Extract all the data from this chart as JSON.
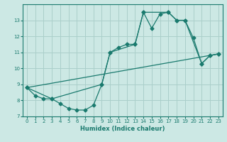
{
  "title": "",
  "xlabel": "Humidex (Indice chaleur)",
  "ylabel": "",
  "background_color": "#cce8e4",
  "grid_color": "#aacfca",
  "line_color": "#1a7a6e",
  "xlim": [
    -0.5,
    23.5
  ],
  "ylim": [
    7,
    14
  ],
  "yticks": [
    7,
    8,
    9,
    10,
    11,
    12,
    13
  ],
  "xticks": [
    0,
    1,
    2,
    3,
    4,
    5,
    6,
    7,
    8,
    9,
    10,
    11,
    12,
    13,
    14,
    15,
    16,
    17,
    18,
    19,
    20,
    21,
    22,
    23
  ],
  "series1_x": [
    0,
    1,
    2,
    3,
    4,
    5,
    6,
    7,
    8,
    9,
    10,
    11,
    12,
    13,
    14,
    15,
    16,
    17,
    18,
    19,
    20,
    21,
    22,
    23
  ],
  "series1_y": [
    8.8,
    8.3,
    8.1,
    8.1,
    7.8,
    7.5,
    7.4,
    7.4,
    7.7,
    9.0,
    11.0,
    11.3,
    11.5,
    11.5,
    13.5,
    12.5,
    13.4,
    13.5,
    13.0,
    13.0,
    11.9,
    10.3,
    10.8,
    10.9
  ],
  "series2_x": [
    0,
    3,
    9,
    10,
    13,
    14,
    17,
    18,
    19,
    21,
    22,
    23
  ],
  "series2_y": [
    8.8,
    8.1,
    9.0,
    11.0,
    11.5,
    13.5,
    13.5,
    13.0,
    13.0,
    10.3,
    10.8,
    10.9
  ],
  "series3_x": [
    0,
    23
  ],
  "series3_y": [
    8.8,
    10.9
  ]
}
